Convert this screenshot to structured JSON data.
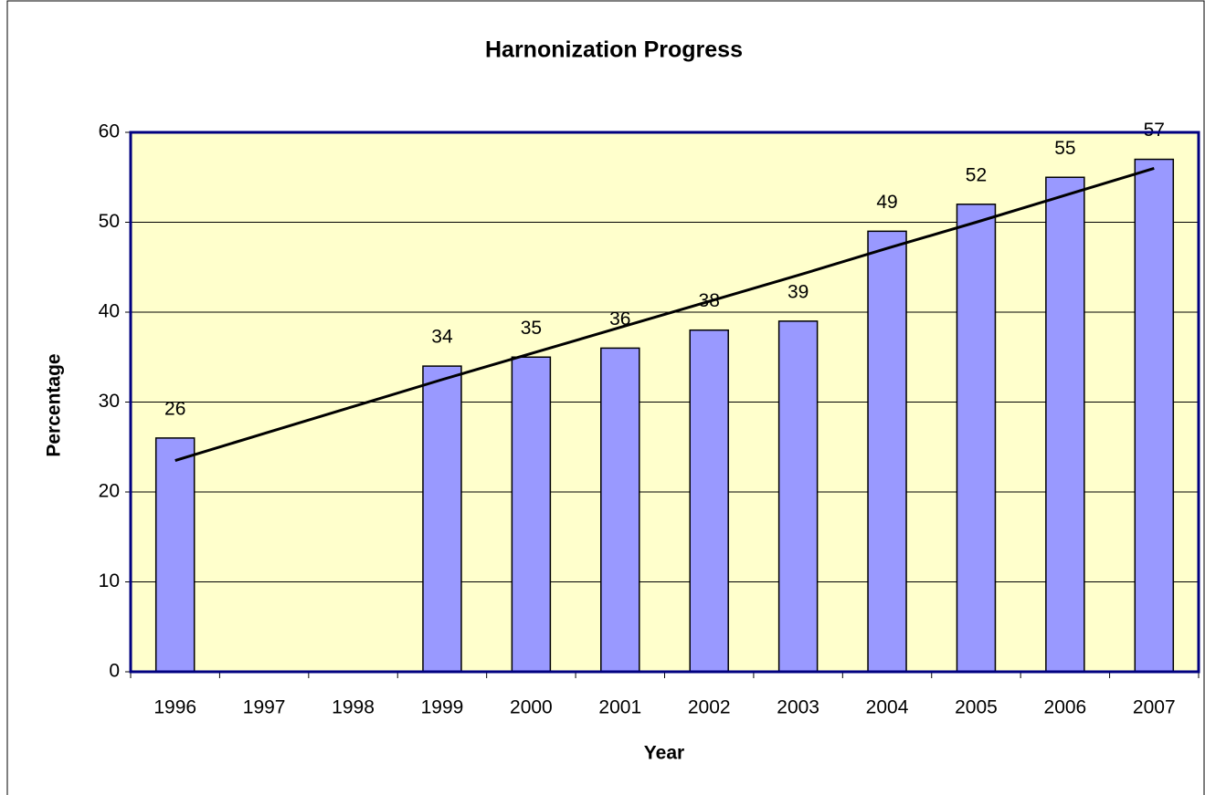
{
  "chart_data": {
    "type": "bar",
    "title": "Harnonization Progress",
    "x_label": "Year",
    "y_label": "Percentage",
    "categories": [
      "1996",
      "1997",
      "1998",
      "1999",
      "2000",
      "2001",
      "2002",
      "2003",
      "2004",
      "2005",
      "2006",
      "2007"
    ],
    "values": [
      26,
      null,
      null,
      34,
      35,
      36,
      38,
      39,
      49,
      52,
      55,
      57
    ],
    "color": "#9999ff",
    "trendline": {
      "color": "#000000",
      "values": [
        23.5,
        26.5,
        29.5,
        32.5,
        35.4,
        38.3,
        41.2,
        44.1,
        47.1,
        50.0,
        53.0,
        56.0
      ]
    },
    "ylim": [
      0,
      60
    ],
    "yticks": [
      0,
      10,
      20,
      30,
      40,
      50,
      60
    ],
    "grid": true,
    "plot_background": "#ffffcc",
    "plot_border": "#000080"
  }
}
